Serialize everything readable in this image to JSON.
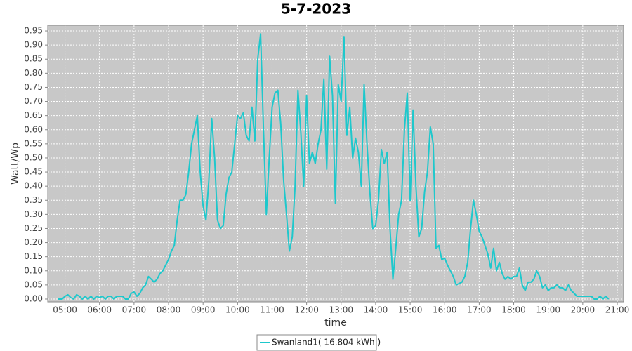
{
  "chart_data": {
    "type": "line",
    "title": "5-7-2023",
    "x_label": "time",
    "y_label": "Watt/Wp",
    "x": [
      "04:48",
      "04:55",
      "05:00",
      "05:05",
      "05:10",
      "05:15",
      "05:20",
      "05:25",
      "05:30",
      "05:35",
      "05:40",
      "05:45",
      "05:50",
      "05:55",
      "06:00",
      "06:05",
      "06:10",
      "06:15",
      "06:20",
      "06:25",
      "06:30",
      "06:35",
      "06:40",
      "06:45",
      "06:50",
      "06:55",
      "07:00",
      "07:05",
      "07:10",
      "07:15",
      "07:20",
      "07:25",
      "07:30",
      "07:35",
      "07:40",
      "07:45",
      "07:50",
      "07:55",
      "08:00",
      "08:05",
      "08:10",
      "08:15",
      "08:20",
      "08:25",
      "08:30",
      "08:35",
      "08:40",
      "08:45",
      "08:50",
      "08:55",
      "09:00",
      "09:05",
      "09:10",
      "09:15",
      "09:20",
      "09:25",
      "09:30",
      "09:35",
      "09:40",
      "09:45",
      "09:50",
      "09:55",
      "10:00",
      "10:05",
      "10:10",
      "10:15",
      "10:20",
      "10:25",
      "10:30",
      "10:35",
      "10:40",
      "10:45",
      "10:50",
      "10:55",
      "11:00",
      "11:05",
      "11:10",
      "11:15",
      "11:20",
      "11:25",
      "11:30",
      "11:35",
      "11:40",
      "11:45",
      "11:50",
      "11:55",
      "12:00",
      "12:05",
      "12:10",
      "12:15",
      "12:20",
      "12:25",
      "12:30",
      "12:35",
      "12:40",
      "12:45",
      "12:50",
      "12:55",
      "13:00",
      "13:05",
      "13:10",
      "13:15",
      "13:20",
      "13:25",
      "13:30",
      "13:35",
      "13:40",
      "13:45",
      "13:50",
      "13:55",
      "14:00",
      "14:05",
      "14:10",
      "14:15",
      "14:20",
      "14:25",
      "14:30",
      "14:35",
      "14:40",
      "14:45",
      "14:50",
      "14:55",
      "15:00",
      "15:05",
      "15:10",
      "15:15",
      "15:20",
      "15:25",
      "15:30",
      "15:35",
      "15:40",
      "15:45",
      "15:50",
      "15:55",
      "16:00",
      "16:05",
      "16:10",
      "16:15",
      "16:20",
      "16:25",
      "16:30",
      "16:35",
      "16:40",
      "16:45",
      "16:50",
      "16:55",
      "17:00",
      "17:05",
      "17:10",
      "17:15",
      "17:20",
      "17:25",
      "17:30",
      "17:35",
      "17:40",
      "17:45",
      "17:50",
      "17:55",
      "18:00",
      "18:05",
      "18:10",
      "18:15",
      "18:20",
      "18:25",
      "18:30",
      "18:35",
      "18:40",
      "18:45",
      "18:50",
      "18:55",
      "19:00",
      "19:05",
      "19:10",
      "19:15",
      "19:20",
      "19:25",
      "19:30",
      "19:35",
      "19:40",
      "19:45",
      "19:50",
      "19:55",
      "20:00",
      "20:05",
      "20:10",
      "20:15",
      "20:20",
      "20:25",
      "20:30",
      "20:35",
      "20:40",
      "20:45"
    ],
    "series": [
      {
        "name": "Swanland1( 16.804 kWh )",
        "color": "#1ec8cc",
        "values": [
          0.0,
          0.0,
          0.01,
          0.015,
          0.005,
          0.0,
          0.015,
          0.01,
          0.0,
          0.01,
          0.0,
          0.01,
          0.0,
          0.01,
          0.005,
          0.01,
          0.0,
          0.01,
          0.01,
          0.0,
          0.01,
          0.01,
          0.01,
          0.0,
          0.0,
          0.02,
          0.025,
          0.01,
          0.02,
          0.04,
          0.05,
          0.08,
          0.07,
          0.06,
          0.07,
          0.09,
          0.1,
          0.12,
          0.14,
          0.17,
          0.19,
          0.28,
          0.35,
          0.35,
          0.37,
          0.45,
          0.55,
          0.6,
          0.65,
          0.45,
          0.33,
          0.28,
          0.42,
          0.64,
          0.5,
          0.28,
          0.25,
          0.26,
          0.37,
          0.43,
          0.45,
          0.55,
          0.65,
          0.64,
          0.66,
          0.58,
          0.56,
          0.68,
          0.56,
          0.85,
          0.94,
          0.6,
          0.3,
          0.5,
          0.68,
          0.73,
          0.74,
          0.62,
          0.42,
          0.3,
          0.17,
          0.22,
          0.4,
          0.74,
          0.59,
          0.4,
          0.72,
          0.48,
          0.52,
          0.48,
          0.55,
          0.6,
          0.78,
          0.46,
          0.86,
          0.72,
          0.34,
          0.76,
          0.7,
          0.93,
          0.58,
          0.68,
          0.5,
          0.57,
          0.52,
          0.4,
          0.76,
          0.55,
          0.38,
          0.25,
          0.26,
          0.35,
          0.53,
          0.48,
          0.52,
          0.25,
          0.07,
          0.18,
          0.3,
          0.35,
          0.6,
          0.73,
          0.35,
          0.67,
          0.4,
          0.22,
          0.25,
          0.38,
          0.45,
          0.61,
          0.55,
          0.18,
          0.19,
          0.14,
          0.145,
          0.12,
          0.1,
          0.08,
          0.05,
          0.055,
          0.06,
          0.08,
          0.13,
          0.25,
          0.35,
          0.3,
          0.24,
          0.22,
          0.19,
          0.16,
          0.11,
          0.18,
          0.1,
          0.13,
          0.09,
          0.07,
          0.08,
          0.07,
          0.08,
          0.08,
          0.11,
          0.05,
          0.03,
          0.06,
          0.06,
          0.07,
          0.1,
          0.08,
          0.04,
          0.05,
          0.03,
          0.04,
          0.04,
          0.05,
          0.04,
          0.04,
          0.03,
          0.05,
          0.03,
          0.02,
          0.01,
          0.01,
          0.01,
          0.01,
          0.01,
          0.01,
          0.0,
          0.0,
          0.01,
          0.0,
          0.01,
          0.0
        ]
      }
    ],
    "xlim": [
      "04:30",
      "21:11"
    ],
    "xticks": [
      "05:00",
      "06:00",
      "07:00",
      "08:00",
      "09:00",
      "10:00",
      "11:00",
      "12:00",
      "13:00",
      "14:00",
      "15:00",
      "16:00",
      "17:00",
      "18:00",
      "19:00",
      "20:00",
      "21:00"
    ],
    "ylim": [
      -0.01,
      0.97
    ],
    "yticks": [
      {
        "value": 0,
        "label": "0.00"
      },
      {
        "value": 0.05,
        "label": "0.05"
      },
      {
        "value": 0.1,
        "label": "0.10"
      },
      {
        "value": 0.15,
        "label": "0.15"
      },
      {
        "value": 0.2,
        "label": "0.20"
      },
      {
        "value": 0.25,
        "label": "0.25"
      },
      {
        "value": 0.3,
        "label": "0.30"
      },
      {
        "value": 0.35,
        "label": "0.35"
      },
      {
        "value": 0.4,
        "label": "0.40"
      },
      {
        "value": 0.45,
        "label": "0.45"
      },
      {
        "value": 0.5,
        "label": "0.50"
      },
      {
        "value": 0.55,
        "label": "0.55"
      },
      {
        "value": 0.6,
        "label": "0.60"
      },
      {
        "value": 0.65,
        "label": "0.65"
      },
      {
        "value": 0.7,
        "label": "0.70"
      },
      {
        "value": 0.75,
        "label": "0.75"
      },
      {
        "value": 0.8,
        "label": "0.80"
      },
      {
        "value": 0.85,
        "label": "0.85"
      },
      {
        "value": 0.9,
        "label": "0.90"
      },
      {
        "value": 0.95,
        "label": "0.95"
      }
    ],
    "grid": true,
    "legend": "bottom"
  }
}
